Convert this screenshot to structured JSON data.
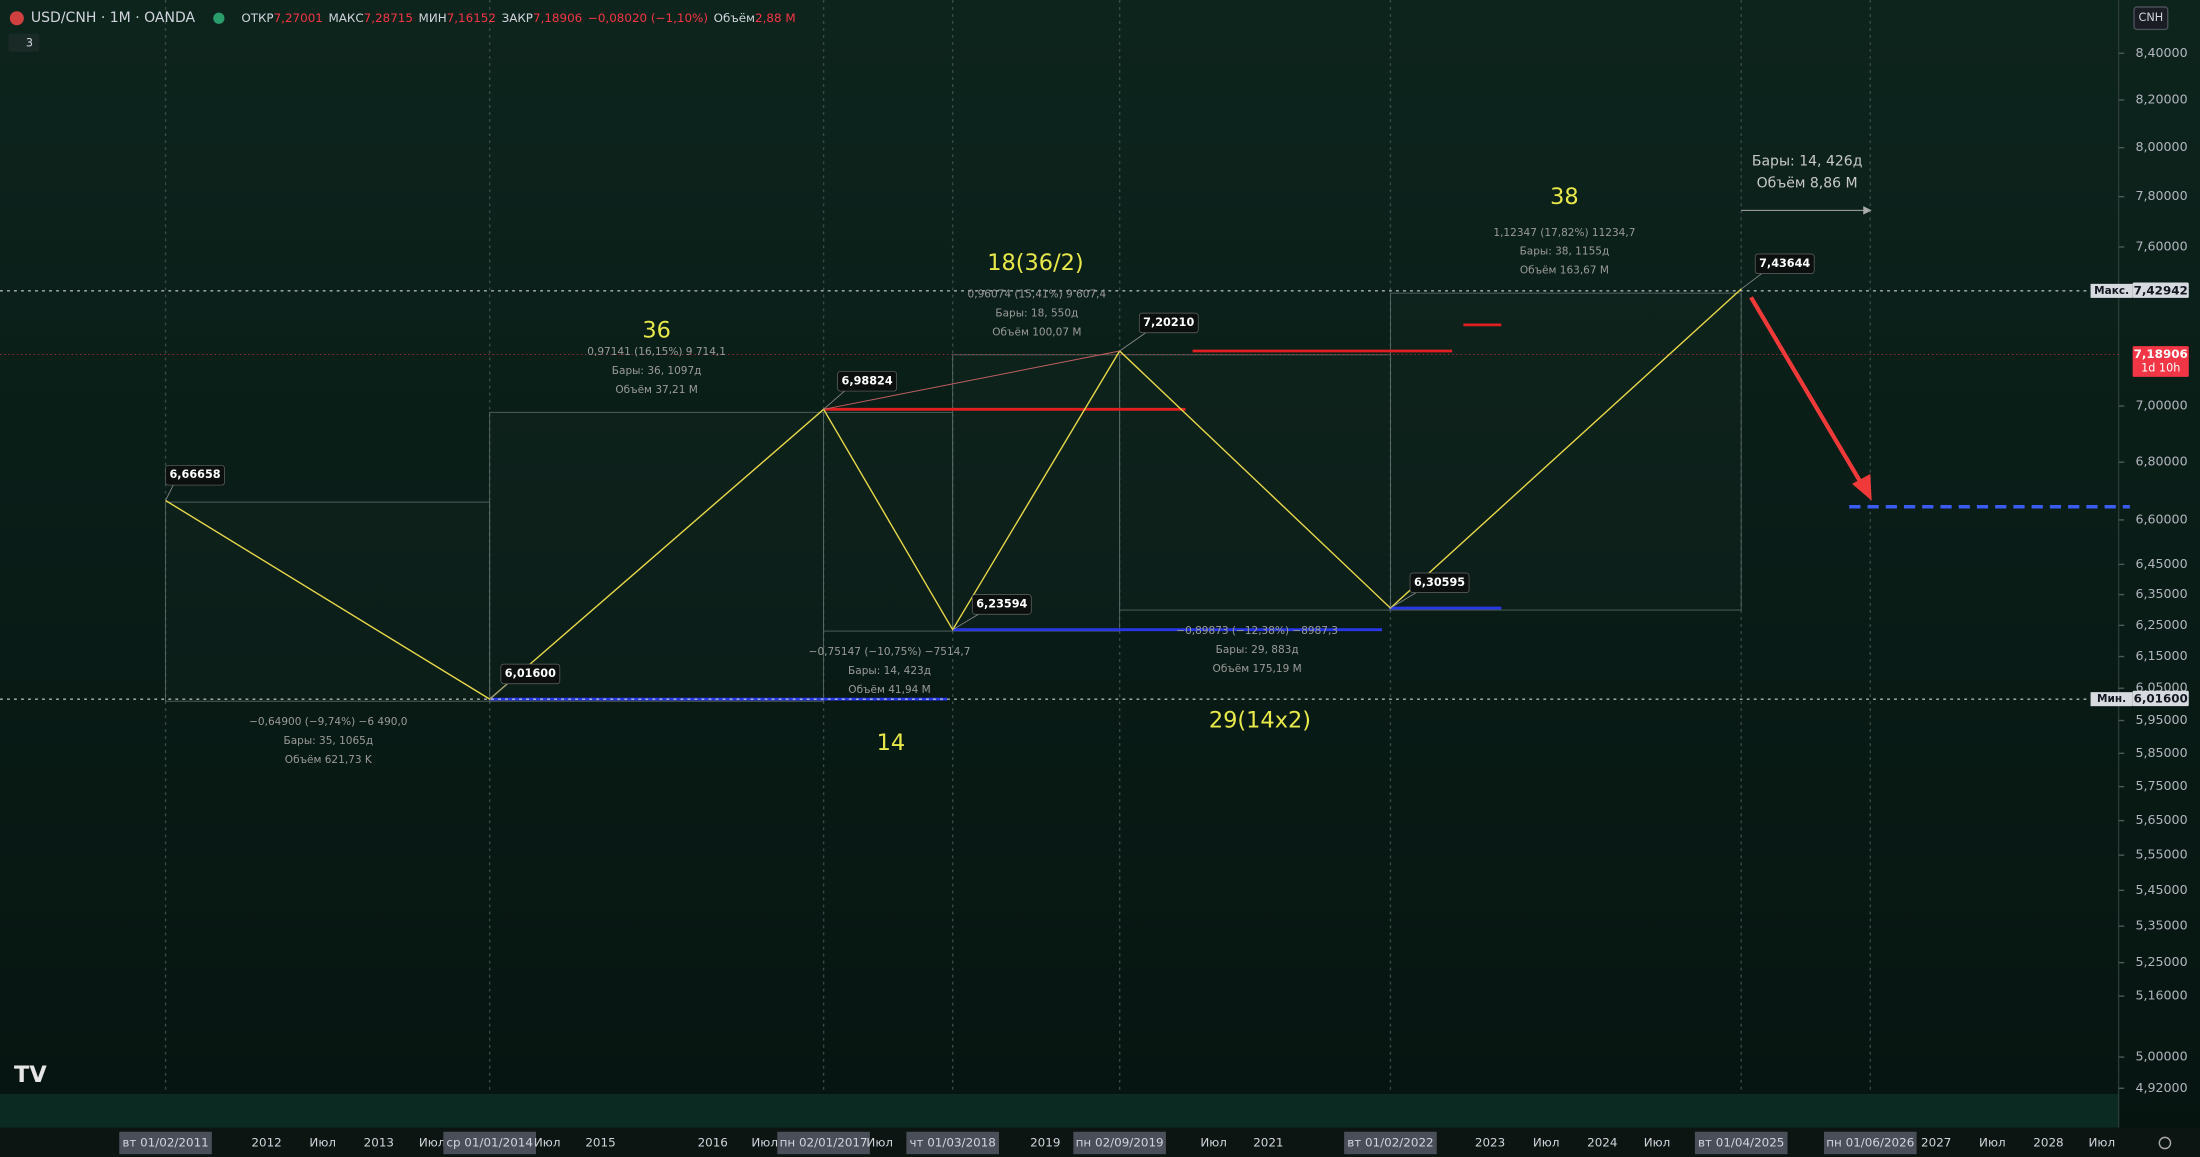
{
  "header": {
    "symbol": "USD/CNH · 1M · OANDA",
    "fields": [
      {
        "label": "ОТКР",
        "value": "7,27001"
      },
      {
        "label": "МАКС",
        "value": "7,28715"
      },
      {
        "label": "МИН",
        "value": "7,16152"
      },
      {
        "label": "ЗАКР",
        "value": "7,18906"
      }
    ],
    "change": "−0,08020 (−1,10%)",
    "volume_label": "Объём",
    "volume": "2,88 M",
    "indicators": "3",
    "currency": "CNH"
  },
  "price_axis": {
    "scale": "log",
    "ticks": [
      {
        "value": 8.4,
        "label": "8,40000"
      },
      {
        "value": 8.2,
        "label": "8,20000"
      },
      {
        "value": 8,
        "label": "8,00000"
      },
      {
        "value": 7.8,
        "label": "7,80000"
      },
      {
        "value": 7.6,
        "label": "7,60000"
      },
      {
        "value": 7,
        "label": "7,00000"
      },
      {
        "value": 6.8,
        "label": "6,80000"
      },
      {
        "value": 6.6,
        "label": "6,60000"
      },
      {
        "value": 6.45,
        "label": "6,45000"
      },
      {
        "value": 6.35,
        "label": "6,35000"
      },
      {
        "value": 6.25,
        "label": "6,25000"
      },
      {
        "value": 6.15,
        "label": "6,15000"
      },
      {
        "value": 6.05,
        "label": "6,05000"
      },
      {
        "value": 5.95,
        "label": "5,95000"
      },
      {
        "value": 5.85,
        "label": "5,85000"
      },
      {
        "value": 5.75,
        "label": "5,75000"
      },
      {
        "value": 5.65,
        "label": "5,65000"
      },
      {
        "value": 5.55,
        "label": "5,55000"
      },
      {
        "value": 5.45,
        "label": "5,45000"
      },
      {
        "value": 5.35,
        "label": "5,35000"
      },
      {
        "value": 5.25,
        "label": "5,25000"
      },
      {
        "value": 5.16,
        "label": "5,16000"
      },
      {
        "value": 5,
        "label": "5,00000"
      },
      {
        "value": 4.92,
        "label": "4,92000"
      }
    ],
    "badges": [
      {
        "name": "Макс.",
        "value": 7.42942,
        "label": "7,42942",
        "color": "#d7dbe0"
      },
      {
        "value": 7.18906,
        "label": "7,18906",
        "extra": "1d 10h",
        "color": "#f23645"
      },
      {
        "name": "Мин.",
        "value": 6.016,
        "label": "6,01600",
        "color": "#d7dbe0"
      }
    ]
  },
  "time_axis": {
    "labels": [
      "вт 01/02/2011",
      "2012",
      "Июл",
      "2013",
      "Июл",
      "ср 01/01/2014",
      "Июл",
      "2015",
      "2016",
      "Июл",
      "пн 02/01/2017",
      "Июл",
      "чт 01/03/2018",
      "2019",
      "пн 02/09/2019",
      "Июл",
      "2021",
      "вт 01/02/2022",
      "2023",
      "Июл",
      "2024",
      "Июл",
      "вт 01/04/2025",
      "пн 01/06/2026",
      "2027",
      "Июл",
      "2028",
      "Июл"
    ]
  },
  "pivots": [
    {
      "value": 6.66658,
      "label": "6,66658"
    },
    {
      "value": 6.016,
      "label": "6,01600"
    },
    {
      "value": 6.98824,
      "label": "6,98824"
    },
    {
      "value": 6.23594,
      "label": "6,23594"
    },
    {
      "value": 7.2021,
      "label": "7,20210"
    },
    {
      "value": 6.30595,
      "label": "6,30595"
    },
    {
      "value": 7.43644,
      "label": "7,43644"
    }
  ],
  "levels": [
    {
      "value": 6.98824,
      "color": "#e02020"
    },
    {
      "value": 7.2021,
      "color": "#e02020"
    },
    {
      "value": 7.3,
      "color": "#e02020"
    },
    {
      "value": 6.016,
      "color": "#2838e8"
    },
    {
      "value": 6.23594,
      "color": "#2838e8"
    },
    {
      "value": 6.30595,
      "color": "#2838e8"
    },
    {
      "value": 6.645,
      "color": "#3a5cf0",
      "dashed": true
    }
  ],
  "annotations": [
    "36",
    "18(36/2)",
    "38",
    "14",
    "29(14x2)"
  ],
  "measurements": [
    [
      "−0,64900 (−9,74%) −6 490,0",
      "Бары: 35, 1065д",
      "Объём 621,73 K"
    ],
    [
      "0,97141 (16,15%) 9 714,1",
      "Бары: 36, 1097д",
      "Объём 37,21 M"
    ],
    [
      "−0,75147 (−10,75%) −7514,7",
      "Бары: 14, 423д",
      "Объём 41,94 M"
    ],
    [
      "0,96074 (15,41%) 9 607,4",
      "Бары: 18, 550д",
      "Объём 100,07 M"
    ],
    [
      "−0,89873 (−12,38%) −8987,3",
      "Бары: 29, 883д",
      "Объём 175,19 M"
    ],
    [
      "1,12347 (17,82%) 11234,7",
      "Бары: 38, 1155д",
      "Объём 163,67 M"
    ],
    [
      "Бары: 14, 426д",
      "Объём 8,86 M"
    ]
  ]
}
